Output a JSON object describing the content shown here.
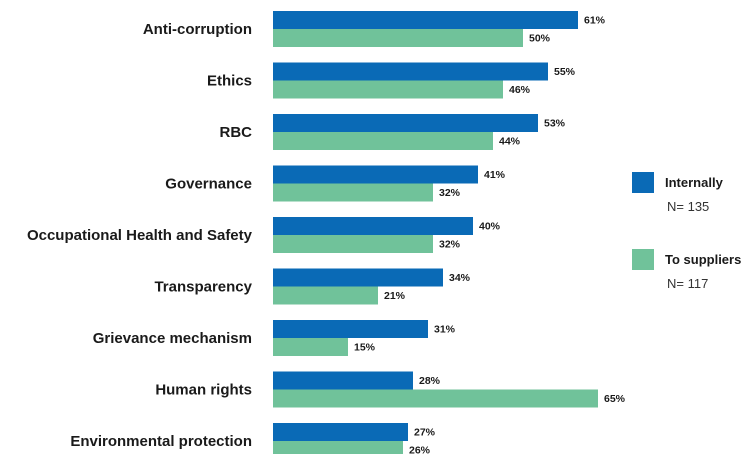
{
  "chart_data": {
    "type": "bar",
    "orientation": "horizontal",
    "categories": [
      "Anti-corruption",
      "Ethics",
      "RBC",
      "Governance",
      "Occupational Health and Safety",
      "Transparency",
      "Grievance mechanism",
      "Human rights",
      "Environmental protection"
    ],
    "series": [
      {
        "name": "Internally",
        "n_label": "N= 135",
        "color": "#0a6ab6",
        "values": [
          61,
          55,
          53,
          41,
          40,
          34,
          31,
          28,
          27
        ],
        "value_labels": [
          "61%",
          "55%",
          "53%",
          "41%",
          "40%",
          "34%",
          "31%",
          "28%",
          "27%"
        ]
      },
      {
        "name": "To suppliers",
        "n_label": "N= 117",
        "color": "#70c29a",
        "values": [
          50,
          46,
          44,
          32,
          32,
          21,
          15,
          65,
          26
        ],
        "value_labels": [
          "50%",
          "46%",
          "44%",
          "32%",
          "32%",
          "21%",
          "15%",
          "65%",
          "26%"
        ]
      }
    ],
    "value_unit": "%",
    "legend_position": "right",
    "grid": false,
    "xlim": [
      0,
      100
    ]
  }
}
